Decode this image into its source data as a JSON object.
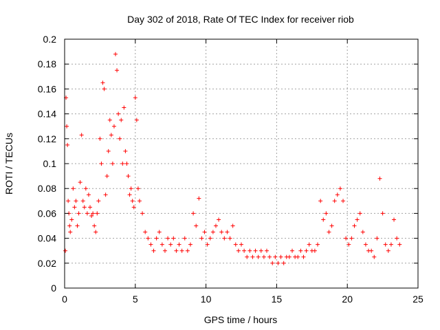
{
  "chart_data": {
    "type": "scatter",
    "title": "Day 302 of 2018, Rate Of TEC Index for receiver riob",
    "xlabel": "GPS time / hours",
    "ylabel": "ROTI / TECUs",
    "xlim": [
      0,
      25
    ],
    "ylim": [
      0,
      0.2
    ],
    "xticks": [
      0,
      5,
      10,
      15,
      20,
      25
    ],
    "xtick_labels": [
      "0",
      "5",
      "10",
      "15",
      "20",
      "25"
    ],
    "yticks": [
      0,
      0.02,
      0.04,
      0.06,
      0.08,
      0.1,
      0.12,
      0.14,
      0.16,
      0.18,
      0.2
    ],
    "ytick_labels": [
      "0",
      "0.02",
      "0.04",
      "0.06",
      "0.08",
      "0.1",
      "0.12",
      "0.14",
      "0.16",
      "0.18",
      "0.2"
    ],
    "grid": true,
    "marker": "plus",
    "color": "#ff0000",
    "series": [
      {
        "x": [
          0.05,
          0.1,
          0.15,
          0.2,
          0.25,
          0.3,
          0.35,
          0.4,
          0.5,
          0.6,
          0.7,
          0.8,
          0.9,
          1.0,
          1.1,
          1.2,
          1.3,
          1.4,
          1.5,
          1.6,
          1.7,
          1.8,
          1.9,
          2.0,
          2.1,
          2.2,
          2.3,
          2.4,
          2.5,
          2.6,
          2.7,
          2.8,
          2.9,
          3.0,
          3.1,
          3.2,
          3.3,
          3.4,
          3.5,
          3.6,
          3.7,
          3.8,
          3.9,
          4.0,
          4.1,
          4.2,
          4.3,
          4.4,
          4.5,
          4.6,
          4.7,
          4.8,
          4.9,
          5.0,
          5.1,
          5.2,
          5.3,
          5.5,
          5.7,
          5.9,
          6.1,
          6.3,
          6.5,
          6.7,
          6.9,
          7.1,
          7.3,
          7.5,
          7.7,
          7.9,
          8.1,
          8.3,
          8.5,
          8.7,
          8.9,
          9.1,
          9.3,
          9.5,
          9.7,
          9.9,
          10.1,
          10.3,
          10.5,
          10.7,
          10.9,
          11.1,
          11.3,
          11.5,
          11.7,
          11.9,
          12.1,
          12.3,
          12.5,
          12.7,
          12.9,
          13.1,
          13.3,
          13.5,
          13.7,
          13.9,
          14.1,
          14.3,
          14.5,
          14.7,
          14.9,
          15.1,
          15.3,
          15.5,
          15.7,
          15.9,
          16.1,
          16.3,
          16.5,
          16.7,
          16.9,
          17.1,
          17.3,
          17.5,
          17.7,
          17.9,
          18.1,
          18.3,
          18.5,
          18.7,
          18.9,
          19.1,
          19.3,
          19.5,
          19.7,
          19.9,
          20.1,
          20.3,
          20.5,
          20.7,
          20.9,
          21.1,
          21.3,
          21.5,
          21.7,
          21.9,
          22.1,
          22.3,
          22.5,
          22.7,
          22.9,
          23.1,
          23.3,
          23.5,
          23.7
        ],
        "y": [
          0.03,
          0.153,
          0.13,
          0.115,
          0.07,
          0.06,
          0.05,
          0.045,
          0.055,
          0.08,
          0.065,
          0.07,
          0.05,
          0.06,
          0.085,
          0.123,
          0.07,
          0.065,
          0.08,
          0.06,
          0.075,
          0.065,
          0.058,
          0.06,
          0.05,
          0.045,
          0.06,
          0.07,
          0.12,
          0.1,
          0.165,
          0.16,
          0.075,
          0.09,
          0.11,
          0.135,
          0.123,
          0.1,
          0.13,
          0.188,
          0.175,
          0.14,
          0.12,
          0.135,
          0.1,
          0.145,
          0.11,
          0.1,
          0.09,
          0.075,
          0.08,
          0.07,
          0.065,
          0.153,
          0.135,
          0.08,
          0.07,
          0.06,
          0.045,
          0.04,
          0.035,
          0.03,
          0.04,
          0.045,
          0.035,
          0.03,
          0.04,
          0.035,
          0.04,
          0.03,
          0.035,
          0.03,
          0.04,
          0.03,
          0.035,
          0.06,
          0.05,
          0.072,
          0.04,
          0.045,
          0.035,
          0.04,
          0.045,
          0.05,
          0.055,
          0.045,
          0.04,
          0.045,
          0.04,
          0.05,
          0.035,
          0.03,
          0.035,
          0.03,
          0.025,
          0.03,
          0.025,
          0.03,
          0.025,
          0.03,
          0.025,
          0.03,
          0.025,
          0.02,
          0.025,
          0.02,
          0.025,
          0.02,
          0.025,
          0.025,
          0.03,
          0.025,
          0.025,
          0.03,
          0.025,
          0.03,
          0.035,
          0.03,
          0.03,
          0.035,
          0.07,
          0.055,
          0.06,
          0.045,
          0.05,
          0.07,
          0.075,
          0.08,
          0.07,
          0.04,
          0.035,
          0.04,
          0.05,
          0.055,
          0.06,
          0.045,
          0.035,
          0.03,
          0.03,
          0.025,
          0.04,
          0.088,
          0.06,
          0.035,
          0.03,
          0.035,
          0.055,
          0.04,
          0.035
        ]
      }
    ]
  }
}
